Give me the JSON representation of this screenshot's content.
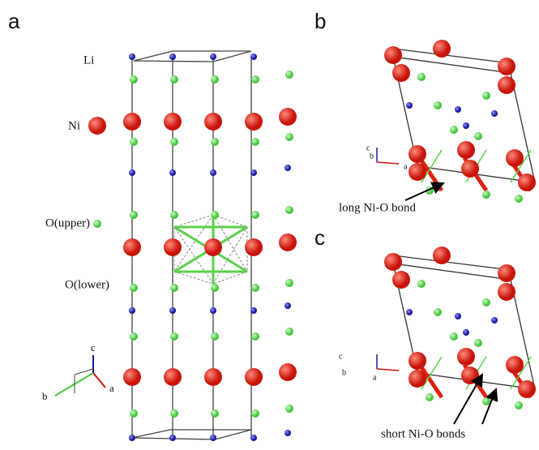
{
  "panels": [
    {
      "label": "a",
      "legend": [
        "Li",
        "Ni",
        "O(upper)",
        "O(lower)"
      ],
      "axes": [
        "c",
        "b",
        "a"
      ]
    },
    {
      "label": "b",
      "axes": [
        "c",
        "b",
        "a"
      ],
      "annotation": "long Ni-O bond"
    },
    {
      "label": "c",
      "axes": [
        "c",
        "b",
        "a"
      ],
      "annotation": "short Ni-O bonds"
    }
  ]
}
